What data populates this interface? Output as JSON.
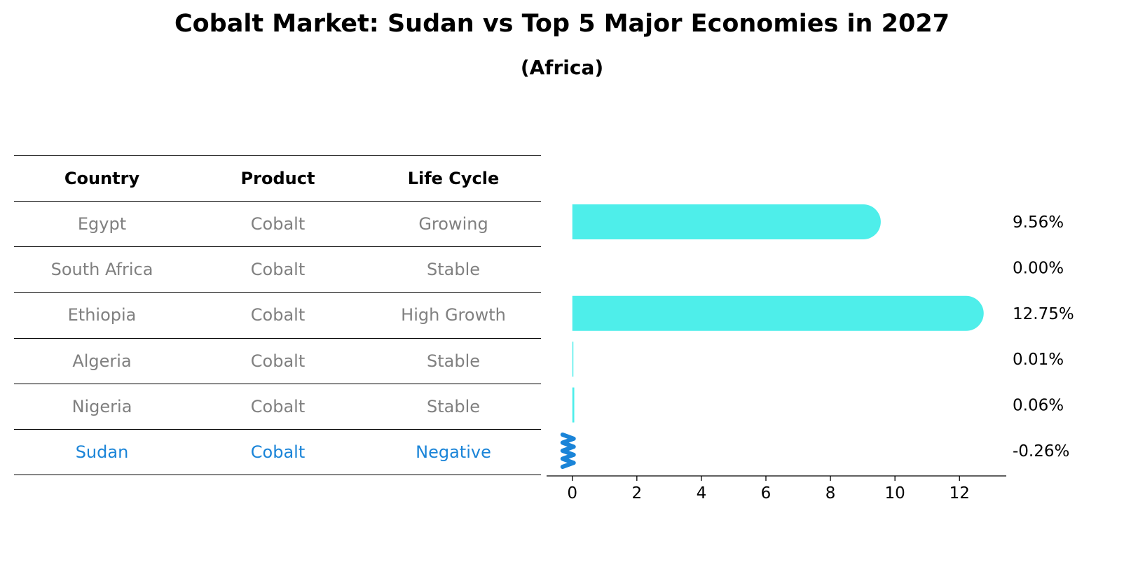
{
  "title": "Cobalt Market: Sudan vs Top 5 Major Economies in 2027",
  "subtitle": "(Africa)",
  "table": {
    "headers": [
      "Country",
      "Product",
      "Life Cycle"
    ],
    "rows": [
      {
        "country": "Egypt",
        "product": "Cobalt",
        "life_cycle": "Growing"
      },
      {
        "country": "South Africa",
        "product": "Cobalt",
        "life_cycle": "Stable"
      },
      {
        "country": "Ethiopia",
        "product": "Cobalt",
        "life_cycle": "High Growth"
      },
      {
        "country": "Algeria",
        "product": "Cobalt",
        "life_cycle": "Stable"
      },
      {
        "country": "Nigeria",
        "product": "Cobalt",
        "life_cycle": "Stable"
      },
      {
        "country": "Sudan",
        "product": "Cobalt",
        "life_cycle": "Negative"
      }
    ],
    "highlight_row": "Sudan",
    "colors": {
      "header_text": "#000000",
      "row_text": "#808080",
      "highlight_text": "#1a84d8"
    }
  },
  "chart_data": {
    "type": "bar",
    "orientation": "horizontal",
    "categories": [
      "Egypt",
      "South Africa",
      "Ethiopia",
      "Algeria",
      "Nigeria",
      "Sudan"
    ],
    "values": [
      9.56,
      0.0,
      12.75,
      0.01,
      0.06,
      -0.26
    ],
    "value_labels": [
      "9.56%",
      "0.00%",
      "12.75%",
      "0.01%",
      "0.06%",
      "-0.26%"
    ],
    "xticks": [
      "0",
      "2",
      "4",
      "6",
      "8",
      "10",
      "12"
    ],
    "xlim": [
      -0.95,
      13.45
    ],
    "xlabel": "",
    "ylabel": "",
    "grid": false,
    "colors": {
      "positive": "#4eeeea",
      "negative": "#1a84d8"
    },
    "negative_style": "zigzag marker"
  }
}
